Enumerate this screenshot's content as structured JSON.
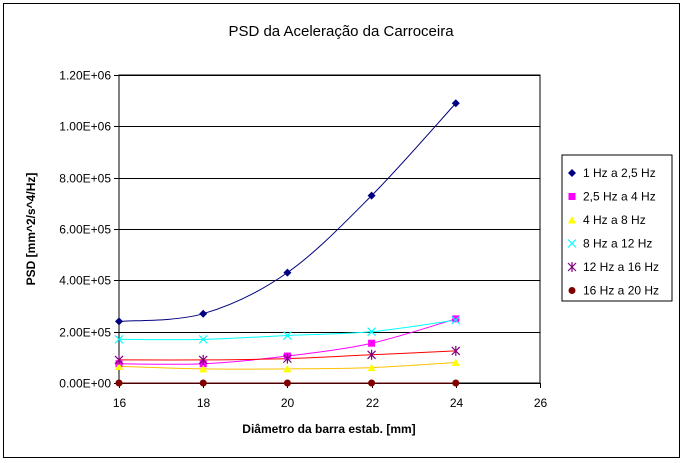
{
  "chart_data": {
    "type": "scatter",
    "title": "PSD da Aceleração da Carroceira",
    "xlabel": "Diâmetro da barra estab. [mm]",
    "ylabel": "PSD [mm^2/s^4/Hz]",
    "xlim": [
      16,
      26
    ],
    "ylim": [
      0,
      1200000
    ],
    "x_ticks": [
      "16",
      "18",
      "20",
      "22",
      "24",
      "26"
    ],
    "y_ticks": [
      "0.00E+00",
      "2.00E+05",
      "4.00E+05",
      "6.00E+05",
      "8.00E+05",
      "1.00E+06",
      "1.20E+06"
    ],
    "grid": "horizontal",
    "legend_position": "right",
    "x": [
      16,
      18,
      20,
      22,
      24
    ],
    "series": [
      {
        "name": "1 Hz a 2,5 Hz",
        "values": [
          240000,
          270000,
          430000,
          730000,
          1090000
        ],
        "color": "#000080",
        "marker": "diamond"
      },
      {
        "name": "2,5 Hz a 4 Hz",
        "values": [
          75000,
          75000,
          105000,
          155000,
          250000
        ],
        "color": "#FF00FF",
        "marker": "square"
      },
      {
        "name": "4 Hz a 8 Hz",
        "values": [
          65000,
          55000,
          55000,
          60000,
          80000
        ],
        "color": "#FFFF00",
        "marker": "triangle"
      },
      {
        "name": "8 Hz a 12 Hz",
        "values": [
          170000,
          170000,
          185000,
          200000,
          245000
        ],
        "color": "#00FFFF",
        "marker": "x"
      },
      {
        "name": "12 Hz a 16 Hz",
        "values": [
          90000,
          90000,
          95000,
          110000,
          125000
        ],
        "color": "#800080",
        "marker": "star"
      },
      {
        "name": "16 Hz a 20 Hz",
        "values": [
          0,
          0,
          0,
          0,
          0
        ],
        "color": "#800000",
        "marker": "circle"
      }
    ],
    "trendline_colors": {
      "1 Hz a 2,5 Hz": "#000080",
      "2,5 Hz a 4 Hz": "#FF00FF",
      "4 Hz a 8 Hz": "#FFC000",
      "8 Hz a 12 Hz": "#00FFFF",
      "12 Hz a 16 Hz": "#FF0000",
      "16 Hz a 20 Hz": "#800000"
    }
  }
}
